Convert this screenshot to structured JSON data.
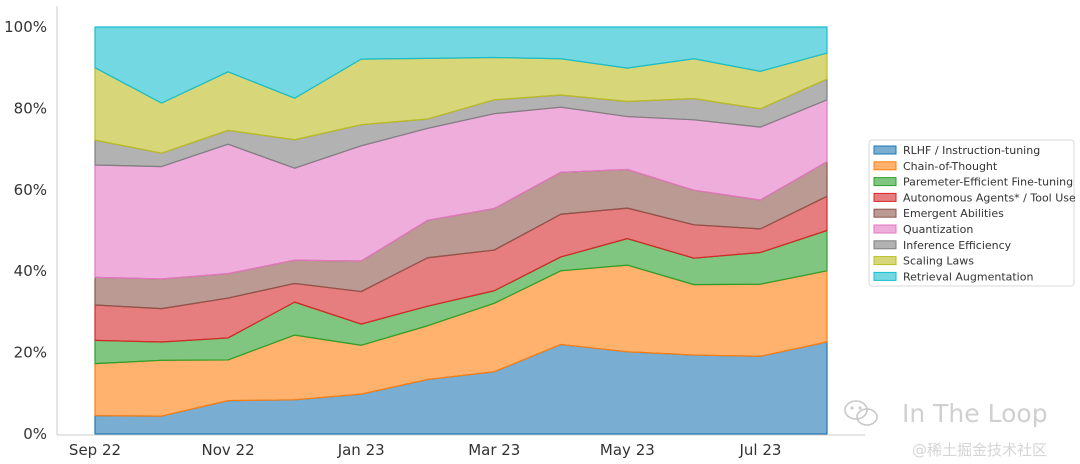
{
  "chart_data": {
    "type": "area",
    "stacked": true,
    "normalized": true,
    "title": "",
    "xlabel": "",
    "ylabel": "",
    "x": [
      "Sep 22",
      "Oct 22",
      "Nov 22",
      "Dec 22",
      "Jan 23",
      "Feb 23",
      "Mar 23",
      "Apr 23",
      "May 23",
      "Jun 23",
      "Jul 23",
      "Aug 23"
    ],
    "xticks": [
      "Sep 22",
      "Nov 22",
      "Jan 23",
      "Mar 23",
      "May 23",
      "Jul 23"
    ],
    "ylim": [
      0,
      100
    ],
    "yticks": [
      0,
      20,
      40,
      60,
      80,
      100
    ],
    "ytick_labels": [
      "0%",
      "20%",
      "40%",
      "60%",
      "80%",
      "100%"
    ],
    "legend_position": "right",
    "series": [
      {
        "name": "RLHF / Instruction-tuning",
        "color": "#1f77b4",
        "values": [
          4.5,
          4.4,
          8.2,
          8.4,
          9.8,
          13.4,
          15.3,
          22.0,
          20.2,
          19.4,
          19.1,
          22.6
        ]
      },
      {
        "name": "Chain-of-Thought",
        "color": "#ff7f0e",
        "values": [
          12.8,
          13.7,
          10.0,
          15.9,
          12.0,
          13.2,
          16.8,
          18.1,
          21.3,
          17.3,
          17.7,
          17.5
        ]
      },
      {
        "name": "Paremeter-Efficient Fine-tuning",
        "color": "#2ca02c",
        "values": [
          5.7,
          4.5,
          5.4,
          8.1,
          5.2,
          4.8,
          3.1,
          3.4,
          6.5,
          6.5,
          7.8,
          9.9
        ]
      },
      {
        "name": "Autonomous Agents* / Tool Use",
        "color": "#d62728",
        "values": [
          8.7,
          8.2,
          9.8,
          4.6,
          8.0,
          11.9,
          10.0,
          10.5,
          7.5,
          8.2,
          5.8,
          8.4
        ]
      },
      {
        "name": "Emergent Abilities",
        "color": "#8c564b",
        "values": [
          6.8,
          7.3,
          6.0,
          5.7,
          7.5,
          9.2,
          10.2,
          10.3,
          9.5,
          8.5,
          7.1,
          8.5
        ]
      },
      {
        "name": "Quantization",
        "color": "#e377c2",
        "values": [
          27.6,
          27.6,
          31.8,
          22.6,
          28.3,
          22.6,
          23.3,
          16.0,
          13.0,
          17.3,
          17.9,
          15.2
        ]
      },
      {
        "name": "Inference Efficiency",
        "color": "#7f7f7f",
        "values": [
          6.1,
          3.3,
          3.4,
          7.0,
          5.2,
          2.3,
          3.4,
          3.0,
          3.7,
          5.2,
          4.5,
          5.1
        ]
      },
      {
        "name": "Scaling Laws",
        "color": "#bcbd22",
        "values": [
          17.8,
          12.3,
          14.4,
          10.2,
          16.1,
          14.9,
          10.4,
          8.9,
          8.2,
          9.8,
          9.2,
          6.4
        ]
      },
      {
        "name": "Retrieval Augmentation",
        "color": "#17becf",
        "values": [
          10.0,
          18.7,
          11.0,
          17.5,
          7.9,
          7.7,
          7.5,
          7.8,
          10.1,
          7.8,
          10.9,
          6.4
        ]
      }
    ]
  },
  "watermark": {
    "brand": "In The Loop",
    "site": "@稀土掘金技术社区"
  }
}
